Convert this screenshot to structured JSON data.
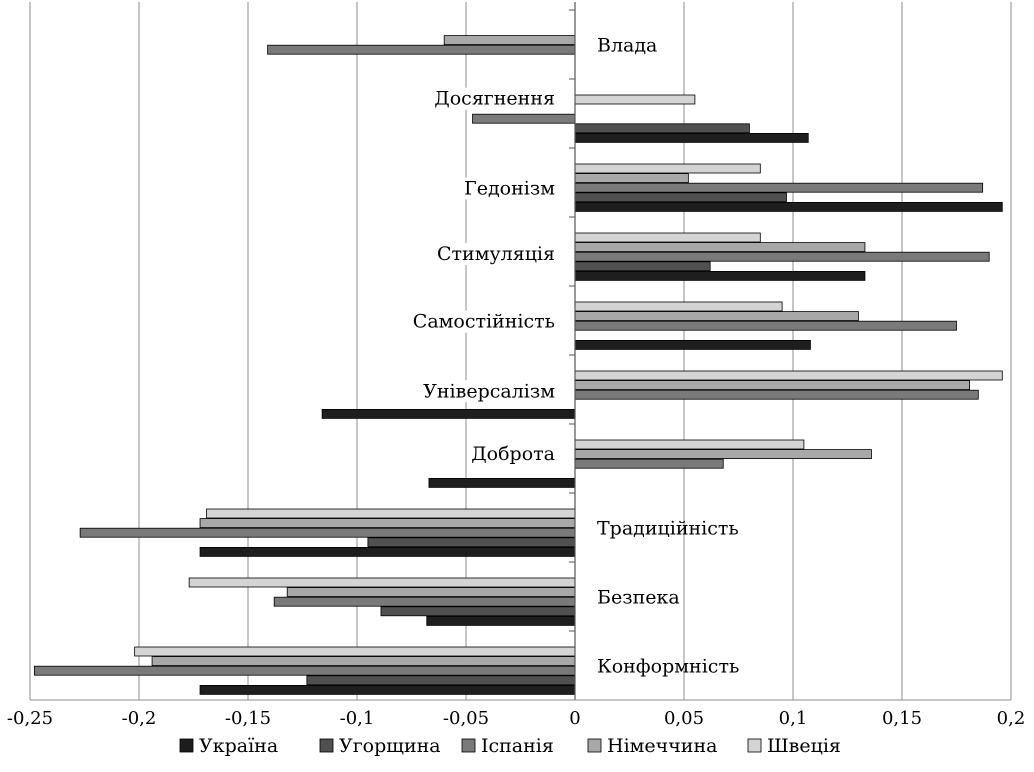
{
  "chart_data": {
    "type": "bar",
    "orientation": "horizontal",
    "categories": [
      "Влада",
      "Досягнення",
      "Гедонізм",
      "Стимуляція",
      "Самостійність",
      "Універсалізм",
      "Доброта",
      "Традиційність",
      "Безпека",
      "Конформність"
    ],
    "series": [
      {
        "name": "Україна",
        "color": "#1e1e1e",
        "values": [
          0,
          0.107,
          0.196,
          0.133,
          0.108,
          -0.116,
          -0.067,
          -0.172,
          -0.068,
          -0.172
        ]
      },
      {
        "name": "Угорщина",
        "color": "#505050",
        "values": [
          0,
          0.08,
          0.097,
          0.062,
          0,
          0,
          0,
          -0.095,
          -0.089,
          -0.123
        ]
      },
      {
        "name": "Іспанія",
        "color": "#7a7a7a",
        "values": [
          -0.141,
          -0.047,
          0.187,
          0.19,
          0.175,
          0.185,
          0.068,
          -0.227,
          -0.138,
          -0.248
        ]
      },
      {
        "name": "Німеччина",
        "color": "#a8a8a8",
        "values": [
          -0.06,
          0,
          0.052,
          0.133,
          0.13,
          0.181,
          0.136,
          -0.172,
          -0.132,
          -0.194
        ]
      },
      {
        "name": "Швеція",
        "color": "#d4d4d4",
        "values": [
          0,
          0.055,
          0.085,
          0.085,
          0.095,
          0.196,
          0.105,
          -0.169,
          -0.177,
          -0.202
        ]
      }
    ],
    "xlim": [
      -0.25,
      0.2
    ],
    "xticks": [
      -0.25,
      -0.2,
      -0.15,
      -0.1,
      -0.05,
      0,
      0.05,
      0.1,
      0.15,
      0.2
    ],
    "xtick_labels": [
      "-0,25",
      "-0,2",
      "-0,15",
      "-0,1",
      "-0,05",
      "0",
      "0,05",
      "0,1",
      "0,15",
      "0,2"
    ],
    "grid": "vertical",
    "legend_position": "bottom",
    "title": "",
    "xlabel": "",
    "ylabel": ""
  }
}
